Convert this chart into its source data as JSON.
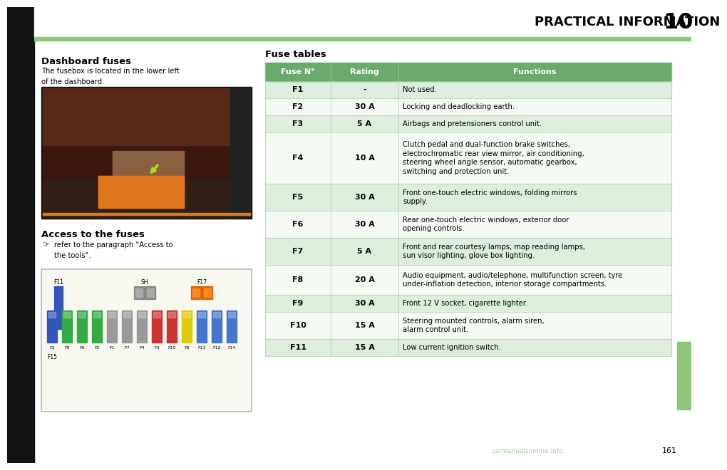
{
  "page_title": "PRACTICAL INFORMATION",
  "page_number": "10",
  "page_number_161": "161",
  "header_bg": "#ffffff",
  "header_green_line_color": "#8dc87a",
  "header_top_black": "#1a1a1a",
  "left_title": "Dashboard fuses",
  "left_desc": "The fusebox is located in the lower left\nof the dashboard.",
  "left_section2_title": "Access to the fuses",
  "left_section2_bullet": "refer to the paragraph \"Access to\nthe tools\".",
  "table_title": "Fuse tables",
  "table_header_bg": "#6aaa6a",
  "table_row_bg_alt": "#ddeedd",
  "table_row_bg_white": "#f5faf5",
  "table_border": "#aaccaa",
  "col_headers": [
    "Fuse N°",
    "Rating",
    "Functions"
  ],
  "fuse_data": [
    [
      "F1",
      "-",
      "Not used."
    ],
    [
      "F2",
      "30 A",
      "Locking and deadlocking earth."
    ],
    [
      "F3",
      "5 A",
      "Airbags and pretensioners control unit."
    ],
    [
      "F4",
      "10 A",
      "Clutch pedal and dual-function brake switches,\nelectrochromatic rear view mirror, air conditioning,\nsteering wheel angle sensor, automatic gearbox,\nswitching and protection unit."
    ],
    [
      "F5",
      "30 A",
      "Front one-touch electric windows, folding mirrors\nsupply."
    ],
    [
      "F6",
      "30 A",
      "Rear one-touch electric windows, exterior door\nopening controls."
    ],
    [
      "F7",
      "5 A",
      "Front and rear courtesy lamps, map reading lamps,\nsun visor lighting, glove box lighting."
    ],
    [
      "F8",
      "20 A",
      "Audio equipment, audio/telephone, multifunction screen, tyre\nunder-inflation detection, interior storage compartments."
    ],
    [
      "F9",
      "30 A",
      "Front 12 V socket, cigarette lighter."
    ],
    [
      "F10",
      "15 A",
      "Steering mounted controls, alarm siren,\nalarm control unit."
    ],
    [
      "F11",
      "15 A",
      "Low current ignition switch."
    ]
  ],
  "right_tab_color": "#8dc87a",
  "watermark_text": "carmanualsonline.info",
  "green_watermark": "#8dc87a",
  "fuse_colors": [
    "#3355bb",
    "#33aa44",
    "#33aa44",
    "#33aa44",
    "#999999",
    "#999999",
    "#999999",
    "#cc3333",
    "#cc3333",
    "#ddcc00",
    "#4477cc",
    "#4477cc",
    "#4477cc"
  ],
  "fuse_labels": [
    "F2",
    "F9",
    "F6",
    "F5",
    "F1",
    "F7",
    "F4",
    "F3",
    "F10",
    "F8",
    "F13",
    "F12",
    "F14"
  ],
  "left_green_bar": "#8dc87a"
}
